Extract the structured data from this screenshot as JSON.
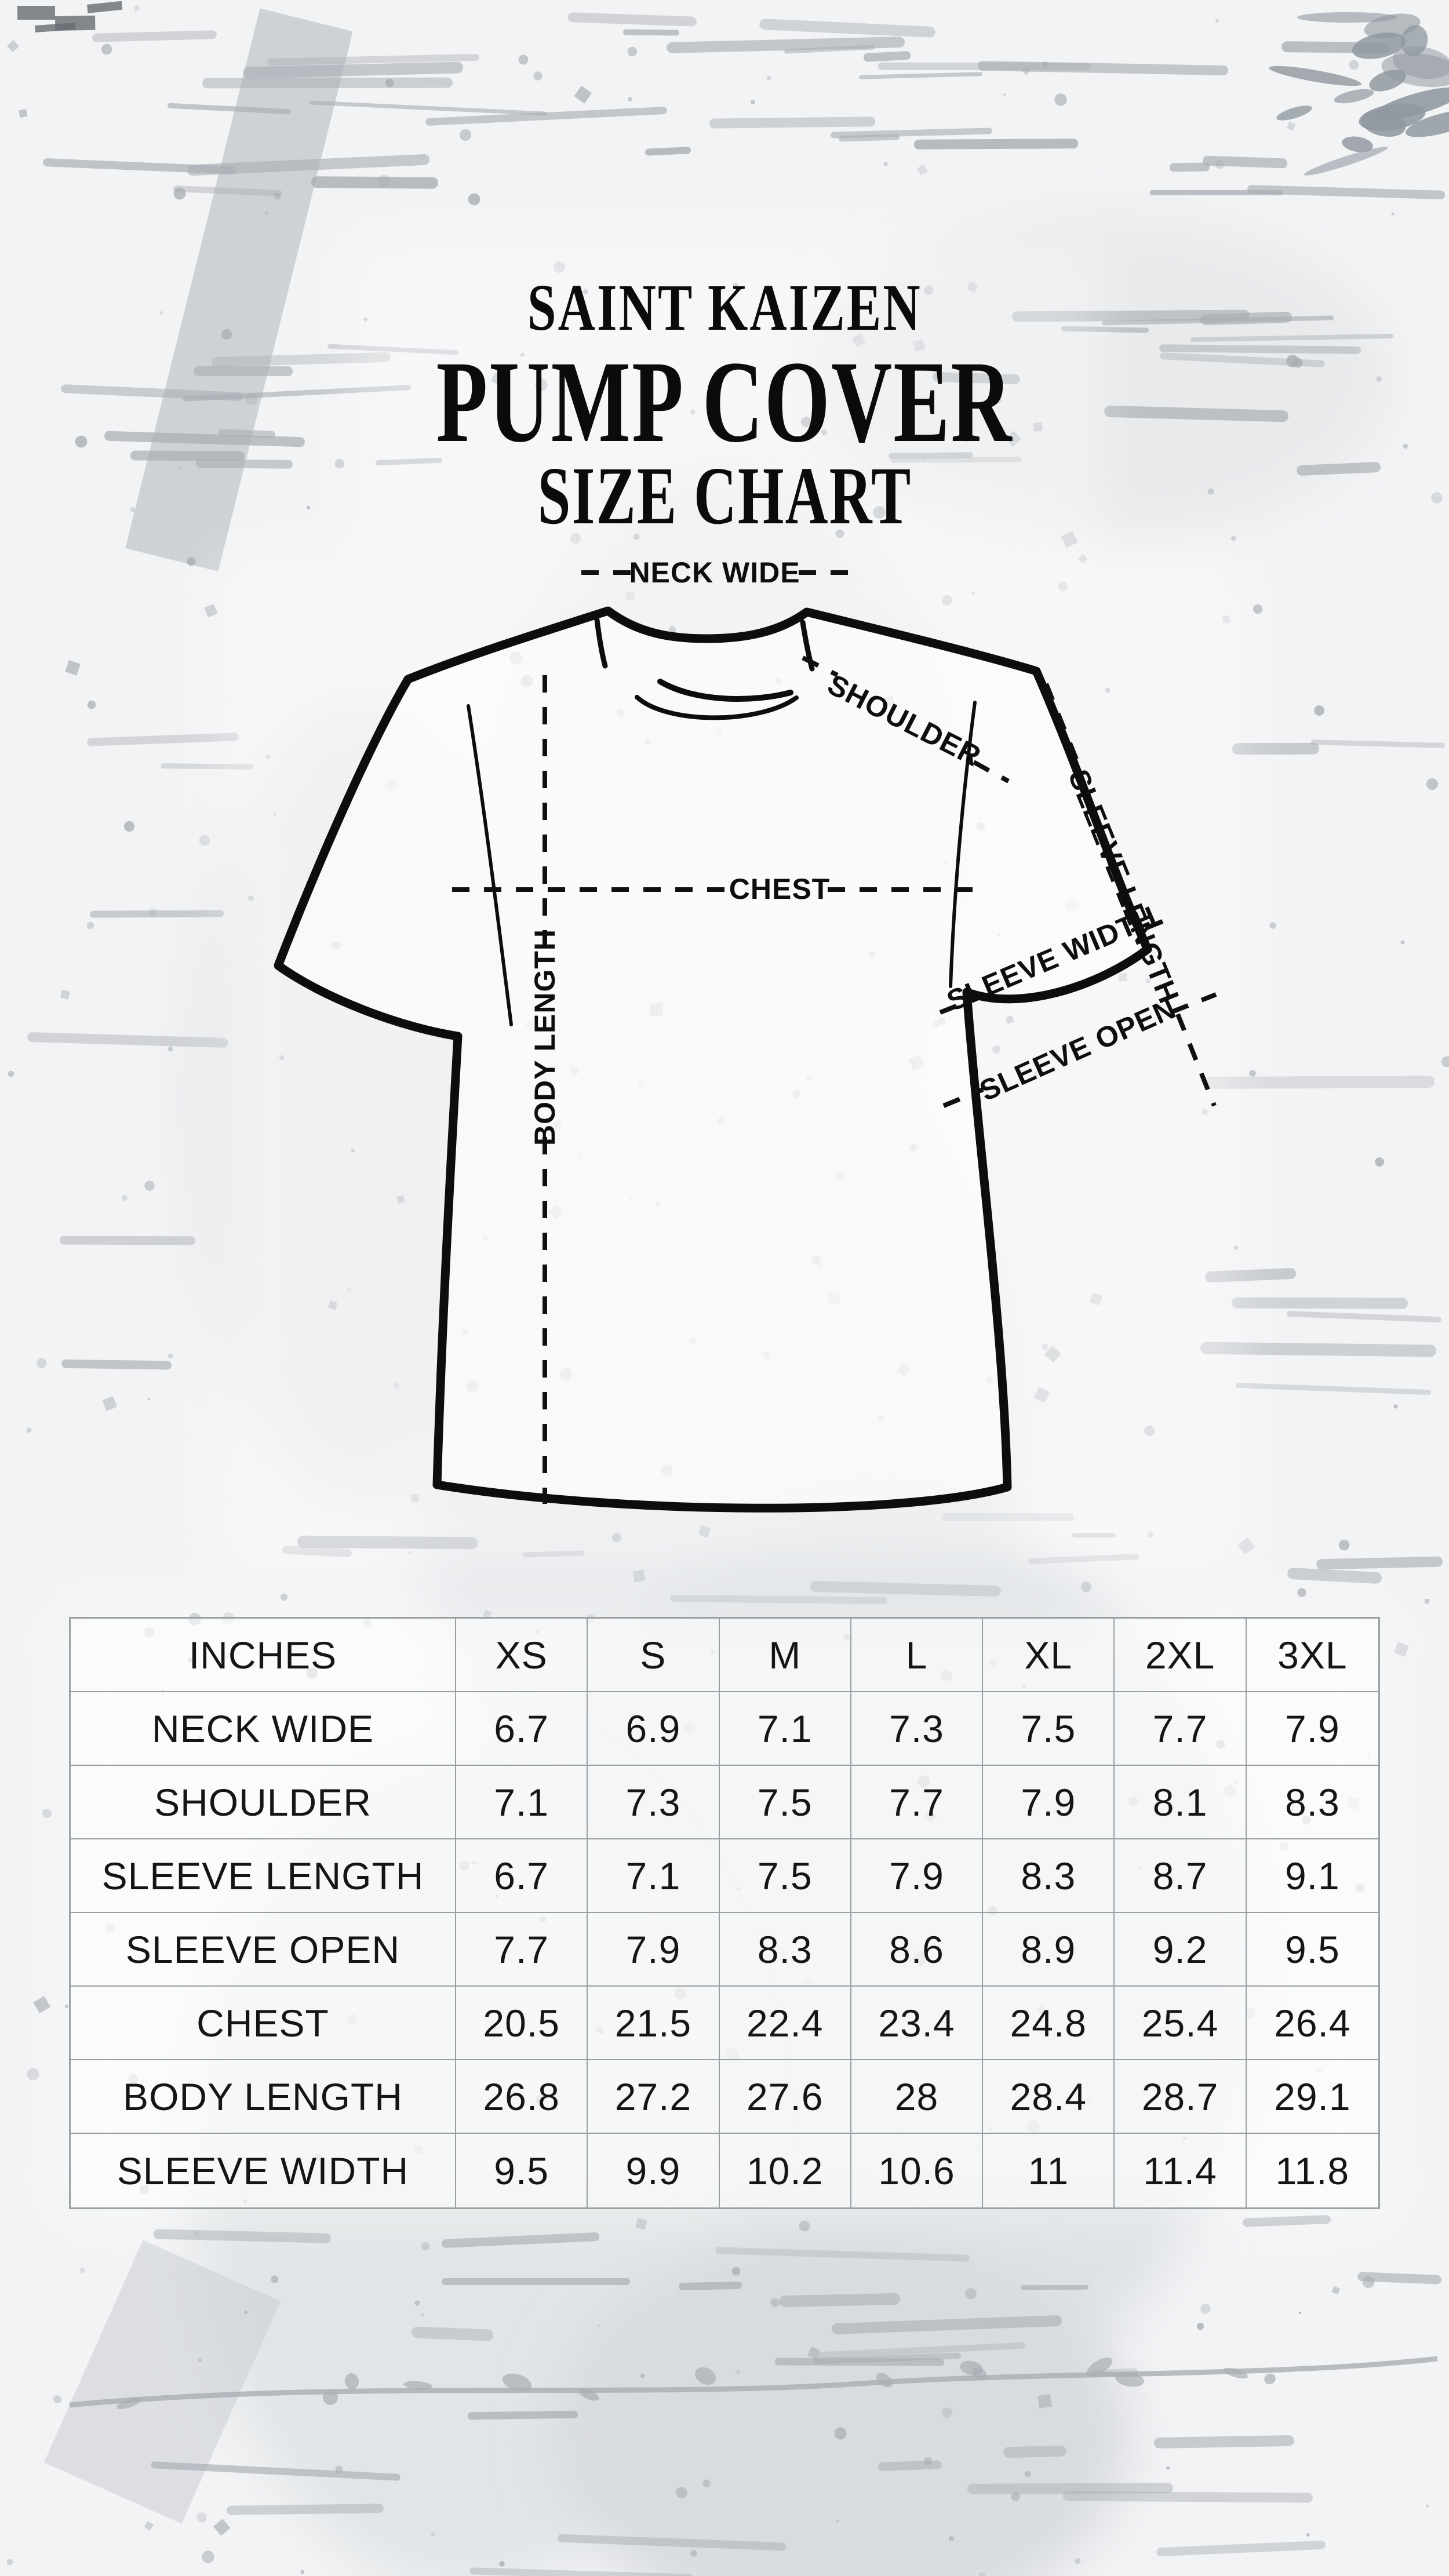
{
  "title": {
    "brand": "SAINT KAIZEN",
    "product": "PUMP COVER",
    "subtitle": "SIZE CHART"
  },
  "diagram": {
    "labels": {
      "neck_wide": "NECK WIDE",
      "shoulder": "SHOULDER",
      "sleeve_length": "SLEEVE LENGTH",
      "chest": "CHEST",
      "body_length": "BODY LENGTH",
      "sleeve_width": "SLEEVE WIDTH",
      "sleeve_open": "SLEEVE OPEN"
    }
  },
  "table": {
    "unit_header": "INCHES",
    "columns": [
      "XS",
      "S",
      "M",
      "L",
      "XL",
      "2XL",
      "3XL"
    ],
    "rows": [
      {
        "label": "NECK WIDE",
        "values": [
          "6.7",
          "6.9",
          "7.1",
          "7.3",
          "7.5",
          "7.7",
          "7.9"
        ]
      },
      {
        "label": "SHOULDER",
        "values": [
          "7.1",
          "7.3",
          "7.5",
          "7.7",
          "7.9",
          "8.1",
          "8.3"
        ]
      },
      {
        "label": "SLEEVE LENGTH",
        "values": [
          "6.7",
          "7.1",
          "7.5",
          "7.9",
          "8.3",
          "8.7",
          "9.1"
        ]
      },
      {
        "label": "SLEEVE OPEN",
        "values": [
          "7.7",
          "7.9",
          "8.3",
          "8.6",
          "8.9",
          "9.2",
          "9.5"
        ]
      },
      {
        "label": "CHEST",
        "values": [
          "20.5",
          "21.5",
          "22.4",
          "23.4",
          "24.8",
          "25.4",
          "26.4"
        ]
      },
      {
        "label": "BODY LENGTH",
        "values": [
          "26.8",
          "27.2",
          "27.6",
          "28",
          "28.4",
          "28.7",
          "29.1"
        ]
      },
      {
        "label": "SLEEVE WIDTH",
        "values": [
          "9.5",
          "9.9",
          "10.2",
          "10.6",
          "11",
          "11.4",
          "11.8"
        ]
      }
    ]
  },
  "colors": {
    "ink": "#0d0d0d",
    "table_line": "#9aa0a2",
    "background": "#f2f3f5",
    "texture_gray": "#a9aeb4"
  }
}
